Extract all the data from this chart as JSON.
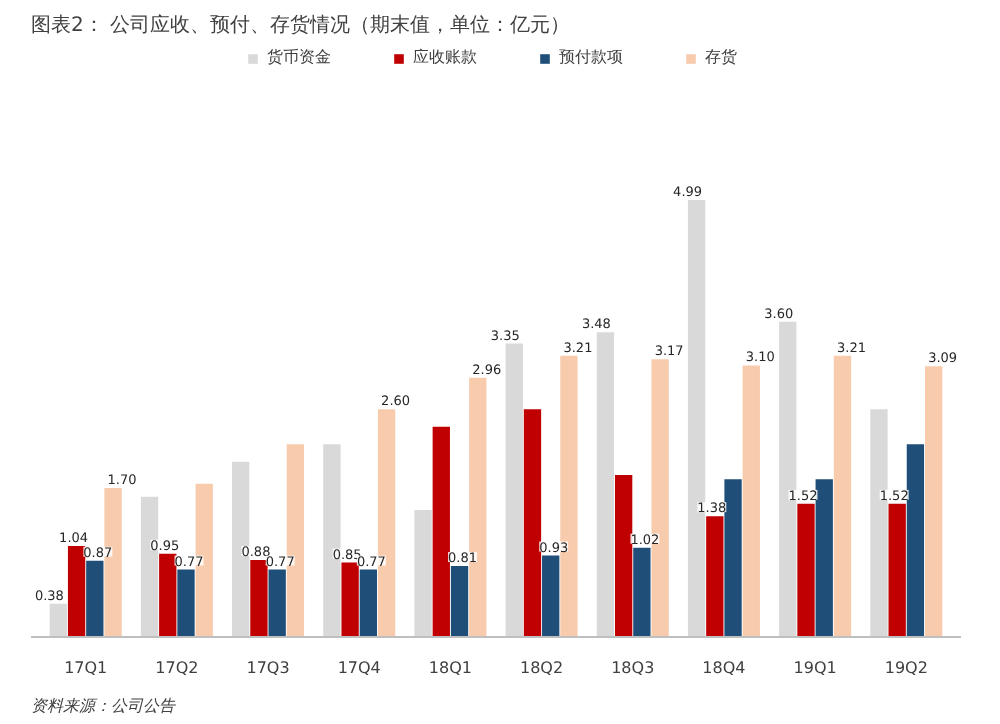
{
  "chart_data": {
    "type": "bar",
    "title": "图表2：  公司应收、预付、存货情况（期末值，单位：亿元）",
    "categories": [
      "17Q1",
      "17Q2",
      "17Q3",
      "17Q4",
      "18Q1",
      "18Q2",
      "18Q3",
      "18Q4",
      "19Q1",
      "19Q2"
    ],
    "series": [
      {
        "name": "货币资金",
        "color": "#d9d9d9",
        "values": [
          0.38,
          1.6,
          2.0,
          2.2,
          1.45,
          3.35,
          3.48,
          4.99,
          3.6,
          2.6
        ],
        "value_labels": [
          "0.38",
          null,
          null,
          null,
          null,
          "3.35",
          "3.48",
          "4.99",
          "3.60",
          null
        ]
      },
      {
        "name": "应收账款",
        "color": "#c00000",
        "values": [
          1.04,
          0.95,
          0.88,
          0.85,
          2.4,
          2.6,
          1.85,
          1.38,
          1.52,
          1.52
        ],
        "value_labels": [
          "1.04",
          "0.95",
          "0.88",
          "0.85",
          null,
          null,
          null,
          "1.38",
          "1.52",
          "1.52"
        ]
      },
      {
        "name": "预付款项",
        "color": "#1f4e79",
        "values": [
          0.87,
          0.77,
          0.77,
          0.77,
          0.81,
          0.93,
          1.02,
          1.8,
          1.8,
          2.2
        ],
        "value_labels": [
          "0.87",
          "0.77",
          "0.77",
          "0.77",
          "0.81",
          "0.93",
          "1.02",
          null,
          null,
          null
        ]
      },
      {
        "name": "存货",
        "color": "#f8cbad",
        "values": [
          1.7,
          1.75,
          2.2,
          2.6,
          2.96,
          3.21,
          3.17,
          3.1,
          3.21,
          3.09
        ],
        "value_labels": [
          "1.70",
          null,
          null,
          "2.60",
          "2.96",
          "3.21",
          "3.17",
          "3.10",
          "3.21",
          "3.09"
        ]
      }
    ],
    "legend": "top",
    "annotations": [
      "资料来源：公司公告"
    ]
  }
}
